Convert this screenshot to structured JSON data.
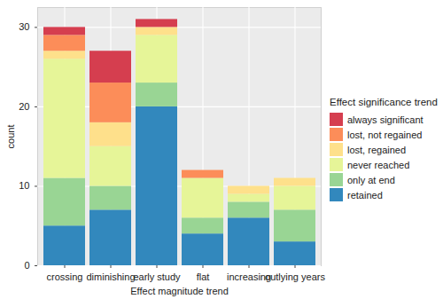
{
  "chart_data": {
    "type": "bar",
    "stacked": true,
    "x_label": "Effect magnitude trend",
    "y_label": "count",
    "legend_title": "Effect significance trend",
    "legend": "right",
    "grid": true,
    "categories": [
      "crossing",
      "diminishing",
      "early study",
      "flat",
      "increasing",
      "outlying years"
    ],
    "series": [
      {
        "name": "retained",
        "color": "#3288BD",
        "values": [
          5,
          7,
          20,
          4,
          6,
          3
        ]
      },
      {
        "name": "only at end",
        "color": "#99D594",
        "values": [
          6,
          3,
          3,
          2,
          2,
          4
        ]
      },
      {
        "name": "never reached",
        "color": "#E6F598",
        "values": [
          15,
          5,
          6,
          5,
          1,
          3
        ]
      },
      {
        "name": "lost, regained",
        "color": "#FEE08B",
        "values": [
          1,
          3,
          1,
          0,
          1,
          1
        ]
      },
      {
        "name": "lost, not regained",
        "color": "#FC8D59",
        "values": [
          2,
          5,
          0,
          1,
          0,
          0
        ]
      },
      {
        "name": "always significant",
        "color": "#D53E4F",
        "values": [
          1,
          4,
          1,
          0,
          0,
          0
        ]
      }
    ],
    "ylim": [
      0,
      32.5
    ],
    "yticks": [
      0,
      10,
      20,
      30
    ]
  }
}
